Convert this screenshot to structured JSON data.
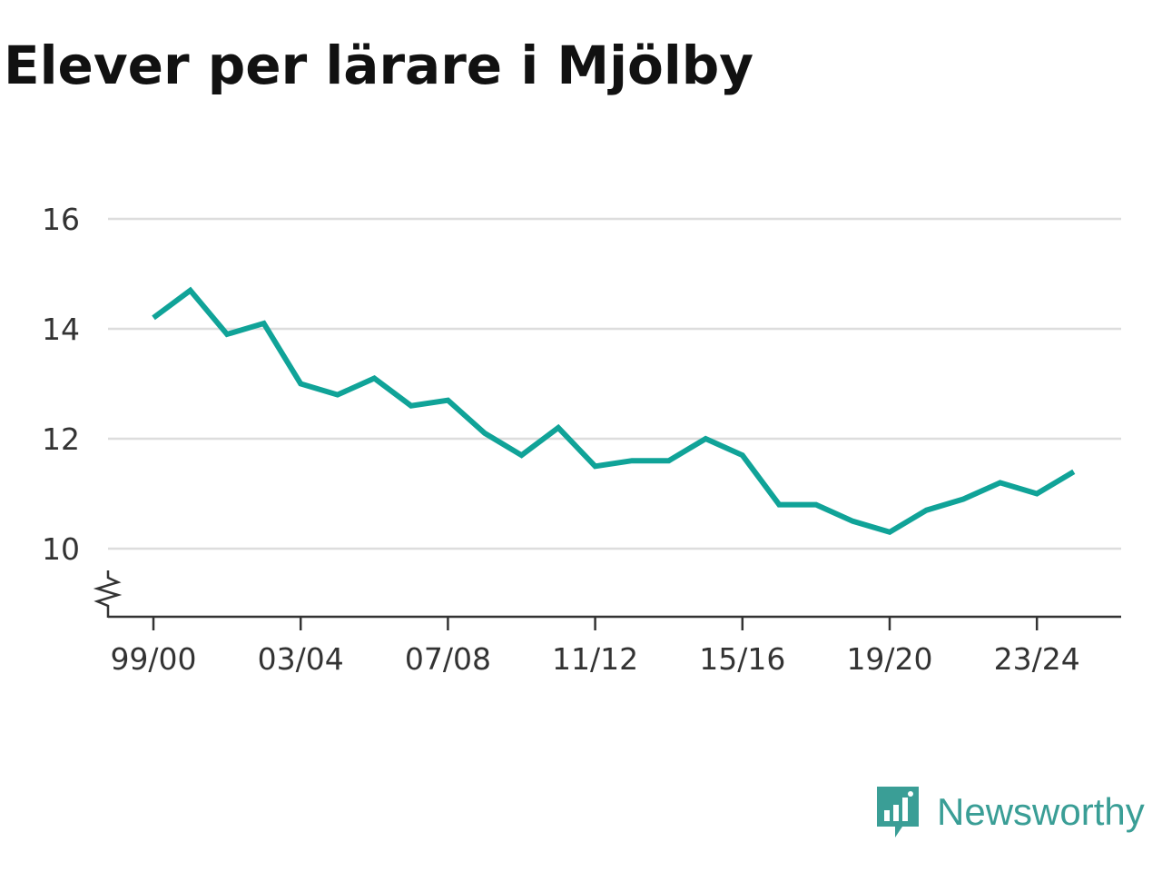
{
  "title": "Elever per lärare i Mjölby",
  "brand": {
    "name": "Newsworthy",
    "icon": "bar-chart-speech-bubble-icon"
  },
  "colors": {
    "line": "#10a398",
    "grid": "#dddddd",
    "axis": "#333333",
    "brand": "#3a9e96"
  },
  "chart_data": {
    "type": "line",
    "title": "Elever per lärare i Mjölby",
    "xlabel": "",
    "ylabel": "",
    "x_ticks": [
      "99/00",
      "03/04",
      "07/08",
      "11/12",
      "15/16",
      "19/20",
      "23/24"
    ],
    "y_ticks": [
      10,
      12,
      14,
      16
    ],
    "ylim": [
      8.8,
      16
    ],
    "y_axis_break": true,
    "grid": "horizontal",
    "series": [
      {
        "x": [
          "99/00",
          "00/01",
          "01/02",
          "02/03",
          "03/04",
          "04/05",
          "05/06",
          "06/07",
          "07/08",
          "08/09",
          "09/10",
          "10/11",
          "11/12",
          "12/13",
          "13/14",
          "14/15",
          "15/16",
          "16/17",
          "17/18",
          "18/19",
          "19/20",
          "20/21",
          "21/22",
          "22/23",
          "23/24",
          "24/25"
        ],
        "values": [
          14.2,
          14.7,
          13.9,
          14.1,
          13.0,
          12.8,
          13.1,
          12.6,
          12.7,
          12.1,
          11.7,
          12.2,
          11.5,
          11.6,
          11.6,
          12.0,
          11.7,
          10.8,
          10.8,
          10.5,
          10.3,
          10.7,
          10.9,
          11.2,
          11.0,
          11.4
        ]
      }
    ]
  }
}
